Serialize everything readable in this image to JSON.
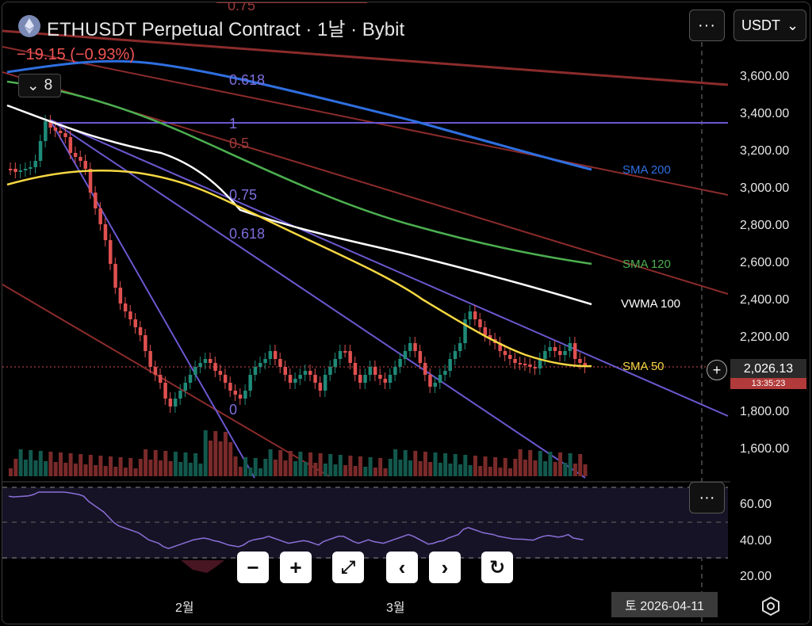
{
  "header": {
    "title": "ETHUSDT Perpetual Contract · 1날 · Bybit",
    "change": "−19.15 (−0.93%)",
    "indicator_count": "8",
    "more_label": "···",
    "currency_label": "USDT"
  },
  "price_axis": [
    "3,600.00",
    "3,400.00",
    "3,200.00",
    "3,000.00",
    "2,800.00",
    "2,600.00",
    "2,400.00",
    "2,200.00",
    "1,800.00",
    "1,600.00"
  ],
  "current_price": "2,026.13",
  "countdown": "13:35:23",
  "rsi_axis": [
    "60.00",
    "40.00",
    "20.00"
  ],
  "fib_labels": {
    "top": "0.75",
    "f0618a": "0.618",
    "f1": "1",
    "f05": "0.5",
    "f075": "0.75",
    "f0618b": "0.618",
    "f0": "0"
  },
  "ma_labels": {
    "sma200": "SMA 200",
    "sma120": "SMA 120",
    "vwma100": "VWMA 100",
    "sma50": "SMA 50"
  },
  "colors": {
    "sma200": "#2f6fe0",
    "sma120": "#4caf50",
    "vwma100": "#ffffff",
    "sma50": "#f5d742",
    "up": "#1f8a78",
    "down": "#e05050",
    "fib_purple": "#6a58d0",
    "channel_red": "#8b2b2b"
  },
  "time_axis": [
    "2월",
    "3월"
  ],
  "date_tag": "토 2026-04-11",
  "controls": {
    "zoom_out": "−",
    "zoom_in": "+",
    "fit": "⤢",
    "prev": "‹",
    "next": "›",
    "reset": "↻"
  }
}
